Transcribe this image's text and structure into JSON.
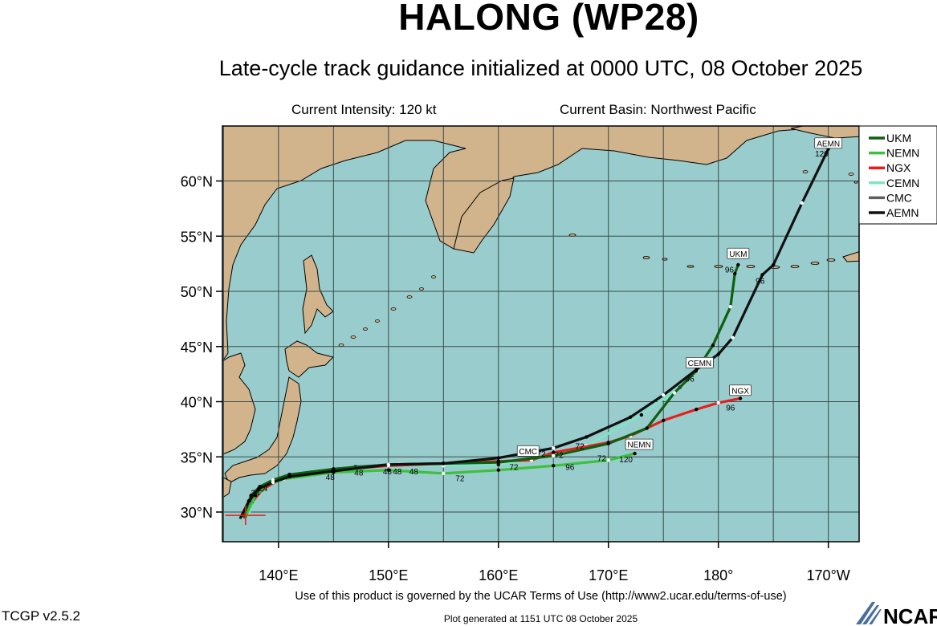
{
  "header": {
    "title": "HALONG (WP28)",
    "subtitle": "Late-cycle track guidance initialized at 0000 UTC, 08 October 2025",
    "intensity": "Current Intensity: 120 kt",
    "basin": "Current Basin: Northwest Pacific"
  },
  "axes": {
    "lat_ticks": [
      "60°N",
      "55°N",
      "50°N",
      "45°N",
      "40°N",
      "35°N",
      "30°N"
    ],
    "lon_ticks": [
      "140°E",
      "150°E",
      "160°E",
      "170°E",
      "180°",
      "170°W"
    ]
  },
  "legend": [
    {
      "name": "UKM",
      "color": "#0f5f10"
    },
    {
      "name": "NEMN",
      "color": "#3cc13c"
    },
    {
      "name": "NGX",
      "color": "#e81e1e"
    },
    {
      "name": "CEMN",
      "color": "#7fe3c6"
    },
    {
      "name": "CMC",
      "color": "#5e5e5e"
    },
    {
      "name": "AEMN",
      "color": "#111111"
    }
  ],
  "colors": {
    "ocean": "#99cccc",
    "land": "#d2b48c",
    "grid": "#3a4a4a"
  },
  "storm_position": {
    "lon": 137.0,
    "lat": 29.7
  },
  "tracks": [
    {
      "name": "AEMN",
      "color": "#111111",
      "points": [
        [
          136.5,
          29.4
        ],
        [
          137.3,
          31.0
        ],
        [
          138.2,
          32.1
        ],
        [
          139.5,
          32.7
        ],
        [
          141,
          33.2
        ],
        [
          145,
          33.7
        ],
        [
          150,
          34.3
        ],
        [
          155,
          34.4
        ],
        [
          160,
          34.9
        ],
        [
          165,
          35.8
        ],
        [
          168,
          36.8
        ],
        [
          172,
          38.6
        ],
        [
          175,
          40.6
        ],
        [
          178,
          42.9
        ],
        [
          180,
          44.3
        ],
        [
          181.3,
          45.8
        ],
        [
          184,
          51.5
        ],
        [
          185,
          52.4
        ],
        [
          187.6,
          58.0
        ],
        [
          190,
          62.9
        ]
      ],
      "labels": [
        {
          "text": "96",
          "lon": 183.8,
          "lat": 51.0
        },
        {
          "text": "120",
          "lon": 189.4,
          "lat": 62.5
        }
      ],
      "box": {
        "text": "AEMN",
        "lon": 190.0,
        "lat": 63.4
      }
    },
    {
      "name": "UKM",
      "color": "#0f5f10",
      "points": [
        [
          136.8,
          29.5
        ],
        [
          137.5,
          31.5
        ],
        [
          138.3,
          32.3
        ],
        [
          139.5,
          32.9
        ],
        [
          141,
          33.4
        ],
        [
          145,
          33.9
        ],
        [
          150,
          34.3
        ],
        [
          155,
          34.4
        ],
        [
          160,
          34.5
        ],
        [
          165,
          35.1
        ],
        [
          170,
          36.2
        ],
        [
          173.5,
          37.6
        ],
        [
          176,
          40.8
        ],
        [
          178,
          42.8
        ],
        [
          179.5,
          45.1
        ],
        [
          181.1,
          48.6
        ],
        [
          181.5,
          51.6
        ],
        [
          181.8,
          52.4
        ]
      ],
      "labels": [
        {
          "text": "96",
          "lon": 181.0,
          "lat": 52.0
        }
      ],
      "box": {
        "text": "UKM",
        "lon": 181.8,
        "lat": 53.4
      }
    },
    {
      "name": "NEMN",
      "color": "#3cc13c",
      "points": [
        [
          137.0,
          29.6
        ],
        [
          137.9,
          31.5
        ],
        [
          139.0,
          32.5
        ],
        [
          140.5,
          33.0
        ],
        [
          145,
          33.6
        ],
        [
          150,
          33.8
        ],
        [
          155,
          33.5
        ],
        [
          160,
          33.8
        ],
        [
          165,
          34.2
        ],
        [
          170,
          34.7
        ],
        [
          172.4,
          35.3
        ]
      ],
      "labels": [
        {
          "text": "72",
          "lon": 156.5,
          "lat": 33.1
        },
        {
          "text": "96",
          "lon": 166.5,
          "lat": 34.1
        },
        {
          "text": "120",
          "lon": 171.6,
          "lat": 34.8
        }
      ],
      "box": {
        "text": "NEMN",
        "lon": 172.8,
        "lat": 36.1
      }
    },
    {
      "name": "NGX",
      "color": "#e81e1e",
      "points": [
        [
          136.9,
          29.4
        ],
        [
          137.6,
          30.9
        ],
        [
          138.5,
          32.0
        ],
        [
          139.8,
          32.8
        ],
        [
          141.5,
          33.3
        ],
        [
          145,
          33.8
        ],
        [
          150,
          34.2
        ],
        [
          155,
          34.4
        ],
        [
          160,
          34.6
        ],
        [
          163,
          34.7
        ],
        [
          165,
          35.4
        ],
        [
          170,
          36.3
        ],
        [
          172,
          36.9
        ],
        [
          175,
          38.3
        ],
        [
          178,
          39.3
        ],
        [
          180,
          39.9
        ],
        [
          182,
          40.3
        ]
      ],
      "labels": [
        {
          "text": "72",
          "lon": 165.5,
          "lat": 35.2
        },
        {
          "text": "96",
          "lon": 181.1,
          "lat": 39.5
        }
      ],
      "box": {
        "text": "NGX",
        "lon": 182.0,
        "lat": 41.0
      }
    },
    {
      "name": "CEMN",
      "color": "#7fe3c6",
      "points": [
        [
          137.2,
          29.6
        ],
        [
          138.0,
          31.5
        ],
        [
          139.0,
          32.5
        ],
        [
          141,
          33.1
        ],
        [
          145,
          33.7
        ],
        [
          150,
          34.2
        ],
        [
          155,
          34.2
        ],
        [
          160,
          34.3
        ],
        [
          163,
          34.7
        ],
        [
          168,
          36.0
        ],
        [
          173,
          38.8
        ],
        [
          176.5,
          41.3
        ],
        [
          178.1,
          42.8
        ]
      ],
      "labels": [
        {
          "text": "72",
          "lon": 163.9,
          "lat": 35.3
        },
        {
          "text": "96",
          "lon": 177.4,
          "lat": 42.1
        }
      ],
      "box": {
        "text": "CEMN",
        "lon": 178.3,
        "lat": 43.5
      }
    },
    {
      "name": "CMC",
      "color": "#5e5e5e",
      "points": [
        [
          137.0,
          29.5
        ],
        [
          137.7,
          31.2
        ],
        [
          138.7,
          32.3
        ],
        [
          140,
          33.0
        ],
        [
          143,
          33.6
        ],
        [
          147,
          34.1
        ],
        [
          151,
          34.3
        ],
        [
          155,
          34.3
        ],
        [
          158,
          34.4
        ],
        [
          160,
          34.5
        ]
      ],
      "labels": [
        {
          "text": "48",
          "lon": 150.8,
          "lat": 33.7
        }
      ],
      "box": {
        "text": "CMC",
        "lon": 162.7,
        "lat": 35.5
      }
    }
  ],
  "extra_labels": [
    {
      "text": "24",
      "lon": 137.9,
      "lat": 31.8
    },
    {
      "text": "24",
      "lon": 138.6,
      "lat": 32.2
    },
    {
      "text": "48",
      "lon": 144.7,
      "lat": 33.2
    },
    {
      "text": "48",
      "lon": 147.3,
      "lat": 33.6
    },
    {
      "text": "48",
      "lon": 149.9,
      "lat": 33.7
    },
    {
      "text": "48",
      "lon": 152.3,
      "lat": 33.7
    },
    {
      "text": "72",
      "lon": 161.4,
      "lat": 34.1
    },
    {
      "text": "72",
      "lon": 167.4,
      "lat": 36.0
    },
    {
      "text": "72",
      "lon": 169.4,
      "lat": 34.9
    }
  ],
  "footer": {
    "terms": "Use of this product is governed by the UCAR Terms of Use (http://www2.ucar.edu/terms-of-use)",
    "version": "TCGP v2.5.2",
    "generated": "Plot generated at 1151 UTC   08 October 2025",
    "logo": "NCAR"
  }
}
